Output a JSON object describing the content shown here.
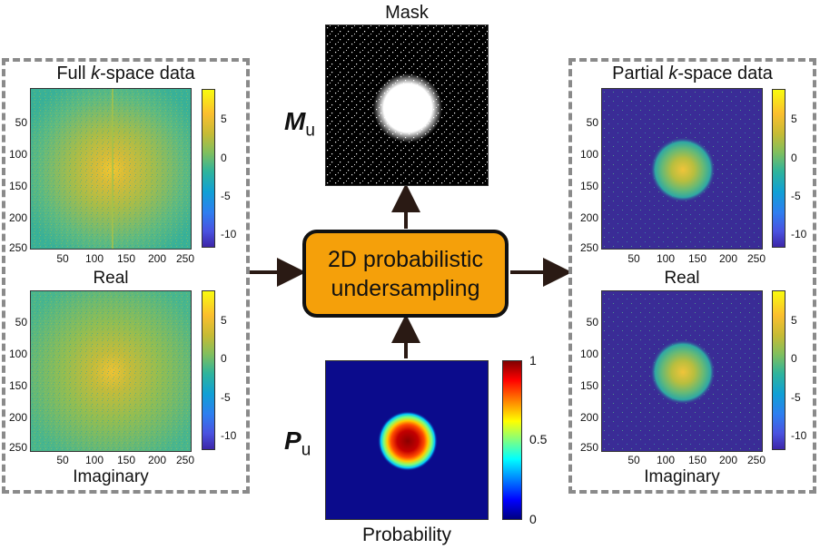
{
  "left_panel": {
    "title_pre": "Full ",
    "title_k": "k",
    "title_post": "-space data",
    "plot_top_caption": "Real",
    "plot_bottom_caption": "Imaginary",
    "y_ticks": [
      "50",
      "100",
      "150",
      "200",
      "250"
    ],
    "x_ticks": [
      "50",
      "100",
      "150",
      "200",
      "250"
    ],
    "colorbar_ticks": [
      "5",
      "0",
      "-5",
      "-10"
    ]
  },
  "right_panel": {
    "title_pre": "Partial ",
    "title_k": "k",
    "title_post": "-space data",
    "plot_top_caption": "Real",
    "plot_bottom_caption": "Imaginary",
    "y_ticks": [
      "50",
      "100",
      "150",
      "200",
      "250"
    ],
    "x_ticks": [
      "50",
      "100",
      "150",
      "200",
      "250"
    ],
    "colorbar_ticks": [
      "5",
      "0",
      "-5",
      "-10"
    ]
  },
  "mask": {
    "title": "Mask",
    "symbol": "M",
    "symbol_sub": "u"
  },
  "process": {
    "line1": "2D probabilistic",
    "line2": "undersampling"
  },
  "probability": {
    "caption": "Probability",
    "symbol": "P",
    "symbol_sub": "u",
    "colorbar_ticks": [
      "1",
      "0.5",
      "0"
    ]
  },
  "colors": {
    "parula_low": "#3d26a8",
    "parula_mid": "#18b7b6",
    "parula_high": "#f9fb0e",
    "process_fill": "#f5a00a",
    "dash_border": "#8a8a8a",
    "arrow": "#2a1a14"
  }
}
